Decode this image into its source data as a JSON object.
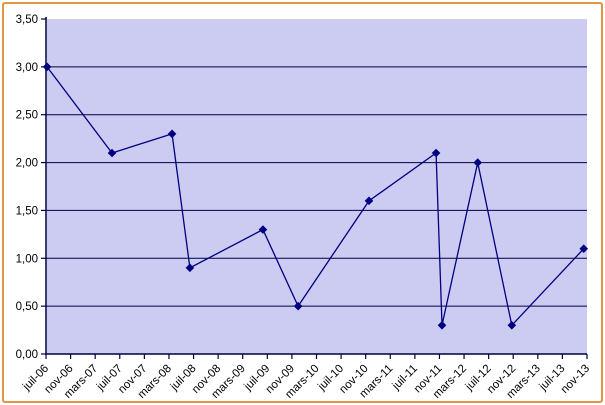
{
  "chart_data": {
    "type": "line",
    "title": "",
    "legend": "none",
    "grid": "horizontal-only",
    "number_format": "french-comma",
    "y_axis": {
      "min": 0,
      "max": 3.5,
      "step": 0.5,
      "tick_labels": [
        "0,00",
        "0,50",
        "1,00",
        "1,50",
        "2,00",
        "2,50",
        "3,00",
        "3,50"
      ],
      "gridline_values": [
        0.5,
        1.0,
        1.5,
        2.0,
        2.5,
        3.0
      ]
    },
    "x_axis": {
      "type": "time (months), major tick every 4 months",
      "label_rotation_deg": 45,
      "tick_labels": [
        "juil-06",
        "nov-06",
        "mars-07",
        "juil-07",
        "nov-07",
        "mars-08",
        "juil-08",
        "nov-08",
        "mars-09",
        "juil-09",
        "nov-09",
        "mars-10",
        "juil-10",
        "nov-10",
        "mars-11",
        "juil-11",
        "nov-11",
        "mars-12",
        "juil-12",
        "nov-12",
        "mars-13",
        "juil-13",
        "nov-13"
      ]
    },
    "series": [
      {
        "marker": "diamond",
        "color": "#000080",
        "points": [
          {
            "x_frac": 0.002,
            "value": 3.0,
            "x_date_approx": "juil-06"
          },
          {
            "x_frac": 0.122,
            "value": 2.1,
            "x_date_approx": "juin-07"
          },
          {
            "x_frac": 0.233,
            "value": 2.3,
            "x_date_approx": "mars-08"
          },
          {
            "x_frac": 0.266,
            "value": 0.9,
            "x_date_approx": "juin-08"
          },
          {
            "x_frac": 0.401,
            "value": 1.3,
            "x_date_approx": "juin-09"
          },
          {
            "x_frac": 0.466,
            "value": 0.5,
            "x_date_approx": "déc-09"
          },
          {
            "x_frac": 0.597,
            "value": 1.6,
            "x_date_approx": "déc-10"
          },
          {
            "x_frac": 0.721,
            "value": 2.1,
            "x_date_approx": "nov-11"
          },
          {
            "x_frac": 0.732,
            "value": 0.3,
            "x_date_approx": "déc-11"
          },
          {
            "x_frac": 0.798,
            "value": 2.0,
            "x_date_approx": "mai-12"
          },
          {
            "x_frac": 0.861,
            "value": 0.3,
            "x_date_approx": "nov-12"
          },
          {
            "x_frac": 0.994,
            "value": 1.1,
            "x_date_approx": "nov-13"
          }
        ]
      }
    ],
    "colors": {
      "plot_background": "#CCCCF2",
      "axis": "#000040",
      "gridline": "#000040",
      "series_line": "#000080",
      "text": "#000000",
      "chart_frame_border": "#E09642",
      "page_background": "#FFFFFF"
    }
  }
}
